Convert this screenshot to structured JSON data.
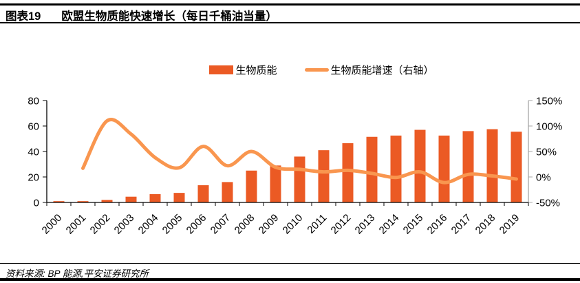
{
  "header": {
    "figure_label": "图表19",
    "title": "欧盟生物质能快速增长（每日千桶油当量）"
  },
  "legend": {
    "items": [
      {
        "label": "生物质能",
        "type": "bar",
        "color": "#EB5A24"
      },
      {
        "label": "生物质能增速（右轴）",
        "type": "line",
        "color": "#F9964F"
      }
    ]
  },
  "chart_data": {
    "type": "bar+line-combo",
    "categories": [
      "2000",
      "2001",
      "2002",
      "2003",
      "2004",
      "2005",
      "2006",
      "2007",
      "2008",
      "2009",
      "2010",
      "2011",
      "2012",
      "2013",
      "2014",
      "2015",
      "2016",
      "2017",
      "2018",
      "2019"
    ],
    "series": [
      {
        "name": "生物质能",
        "type": "bar",
        "axis": "left",
        "color": "#EB5A24",
        "values": [
          1,
          1,
          2,
          4.5,
          6.5,
          7.5,
          13.5,
          16,
          25,
          29,
          36,
          41,
          46.5,
          51.5,
          52.5,
          57,
          52.5,
          56,
          57.5,
          55.5
        ]
      },
      {
        "name": "生物质能增速（右轴）",
        "type": "line",
        "axis": "right",
        "color": "#F9964F",
        "values": [
          null,
          17,
          110,
          84,
          38,
          18,
          60,
          22,
          50,
          19,
          15,
          10,
          13,
          7,
          -1,
          10,
          -11,
          5,
          2,
          -4
        ]
      }
    ],
    "left_axis": {
      "ticks": [
        0,
        20,
        40,
        60,
        80
      ],
      "range": [
        0,
        80
      ]
    },
    "right_axis": {
      "ticks": [
        "-50%",
        "0%",
        "50%",
        "100%",
        "150%"
      ],
      "tick_values": [
        -50,
        0,
        50,
        100,
        150
      ],
      "range": [
        -50,
        150
      ]
    },
    "grid": false,
    "legend_position": "top-center",
    "x_label_rotation": 45,
    "axis_colors": {
      "left": "#000000",
      "bottom": "#000000",
      "right": "#a6a6a6"
    }
  },
  "footer": {
    "source": "资料来源: BP 能源,平安证券研究所"
  }
}
